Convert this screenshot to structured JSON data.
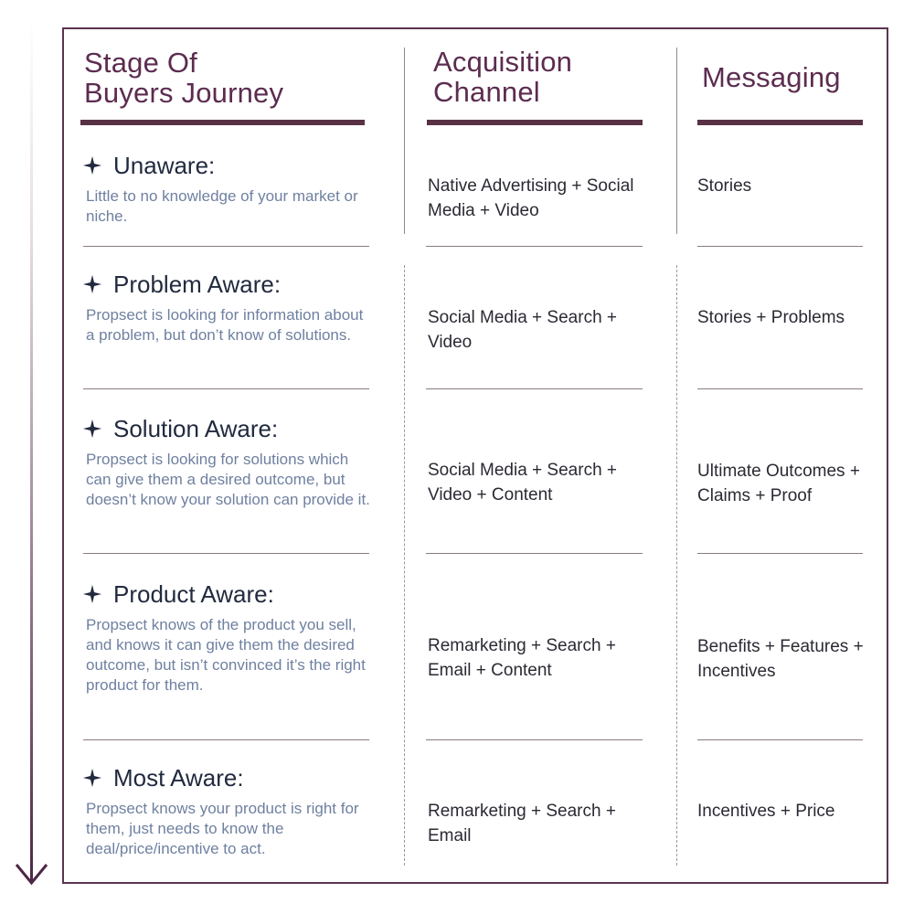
{
  "headers": {
    "stage": [
      "Stage Of",
      "Buyers Journey"
    ],
    "channel": [
      "Acquisition",
      "Channel"
    ],
    "messaging": "Messaging"
  },
  "colors": {
    "accent": "#583145",
    "heading": "#5c2c50",
    "stage_title": "#222a3f",
    "description": "#6f80a0",
    "body_text": "#2a2a33"
  },
  "rows": [
    {
      "icon": "sparkle-star-icon",
      "stage": "Unaware:",
      "description": "Little to no knowledge of your market or niche.",
      "channel": "Native Advertising + Social Media + Video",
      "messaging": "Stories"
    },
    {
      "icon": "sparkle-star-icon",
      "stage": "Problem Aware:",
      "description": "Propsect is looking for information about a problem, but don’t know of solutions.",
      "channel": "Social Media + Search + Video",
      "messaging": "Stories + Problems"
    },
    {
      "icon": "sparkle-star-icon",
      "stage": "Solution Aware:",
      "description": "Propsect is looking for solutions which can give them a desired outcome, but doesn’t know your solution can provide it.",
      "channel": "Social Media + Search + Video + Content",
      "messaging": "Ultimate Outcomes + Claims + Proof"
    },
    {
      "icon": "sparkle-star-icon",
      "stage": "Product Aware:",
      "description": "Propsect knows of the product you sell, and knows it can give them the desired outcome, but isn’t convinced it’s the right product for them.",
      "channel": "Remarketing + Search + Email + Content",
      "messaging": "Benefits + Features + Incentives"
    },
    {
      "icon": "sparkle-star-icon",
      "stage": "Most Aware:",
      "description": "Propsect knows your product is right for them, just needs to know the deal/price/incentive to act.",
      "channel": "Remarketing + Search + Email",
      "messaging": "Incentives + Price"
    }
  ]
}
